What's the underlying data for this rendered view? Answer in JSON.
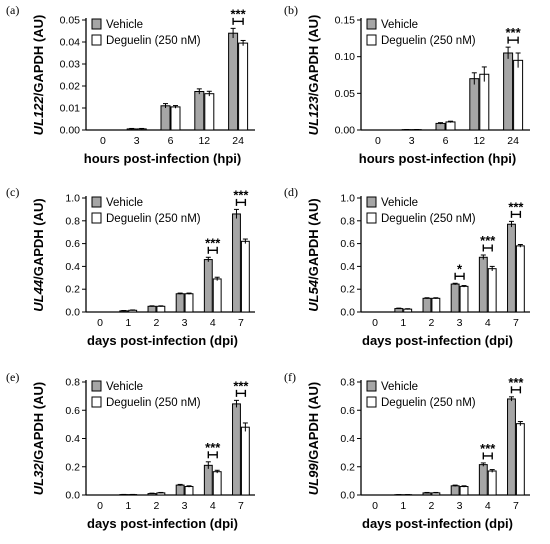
{
  "chart_data": [
    {
      "type": "bar",
      "panel_label": "(a)",
      "ylabel_gene": "UL122",
      "ylabel_rest": "/GAPDH (AU)",
      "xlabel": "hours post-infection (hpi)",
      "categories": [
        "0",
        "3",
        "6",
        "12",
        "24"
      ],
      "ylim": [
        0,
        0.05
      ],
      "yticks": [
        0,
        0.01,
        0.02,
        0.03,
        0.04,
        0.05
      ],
      "ytick_labels": [
        "0.00",
        "0.01",
        "0.02",
        "0.03",
        "0.04",
        "0.05"
      ],
      "series": [
        {
          "name": "Vehicle",
          "values": [
            0,
            0.0005,
            0.011,
            0.0175,
            0.044
          ],
          "errors": [
            0,
            0.0002,
            0.001,
            0.0012,
            0.0022
          ]
        },
        {
          "name": "Deguelin (250 nM)",
          "values": [
            0,
            0.0005,
            0.0105,
            0.0165,
            0.0395
          ],
          "errors": [
            0,
            0.0002,
            0.0006,
            0.0011,
            0.0012
          ]
        }
      ],
      "significance": [
        {
          "category": "24",
          "label": "***"
        }
      ]
    },
    {
      "type": "bar",
      "panel_label": "(b)",
      "ylabel_gene": "UL123",
      "ylabel_rest": "/GAPDH (AU)",
      "xlabel": "hours post-infection (hpi)",
      "categories": [
        "0",
        "3",
        "6",
        "12",
        "24"
      ],
      "ylim": [
        0,
        0.15
      ],
      "yticks": [
        0,
        0.05,
        0.1,
        0.15
      ],
      "ytick_labels": [
        "0.00",
        "0.05",
        "0.10",
        "0.15"
      ],
      "series": [
        {
          "name": "Vehicle",
          "values": [
            0,
            0.0005,
            0.009,
            0.07,
            0.105
          ],
          "errors": [
            0,
            0.0002,
            0.001,
            0.008,
            0.008
          ]
        },
        {
          "name": "Deguelin (250 nM)",
          "values": [
            0,
            0.0005,
            0.011,
            0.076,
            0.095
          ],
          "errors": [
            0,
            0.0002,
            0.001,
            0.01,
            0.01
          ]
        }
      ],
      "significance": [
        {
          "category": "24",
          "label": "***"
        }
      ]
    },
    {
      "type": "bar",
      "panel_label": "(c)",
      "ylabel_gene": "UL44",
      "ylabel_rest": "/GAPDH (AU)",
      "xlabel": "days post-infection (dpi)",
      "categories": [
        "0",
        "1",
        "2",
        "3",
        "4",
        "7"
      ],
      "ylim": [
        0,
        1.0
      ],
      "yticks": [
        0,
        0.2,
        0.4,
        0.6,
        0.8,
        1.0
      ],
      "ytick_labels": [
        "0.0",
        "0.2",
        "0.4",
        "0.6",
        "0.8",
        "1.0"
      ],
      "series": [
        {
          "name": "Vehicle",
          "values": [
            0,
            0.01,
            0.05,
            0.16,
            0.46,
            0.86
          ],
          "errors": [
            0,
            0.003,
            0.004,
            0.006,
            0.02,
            0.04
          ]
        },
        {
          "name": "Deguelin (250 nM)",
          "values": [
            0,
            0.015,
            0.05,
            0.16,
            0.29,
            0.62
          ],
          "errors": [
            0,
            0.003,
            0.004,
            0.006,
            0.015,
            0.02
          ]
        }
      ],
      "significance": [
        {
          "category": "4",
          "label": "***"
        },
        {
          "category": "7",
          "label": "***"
        }
      ]
    },
    {
      "type": "bar",
      "panel_label": "(d)",
      "ylabel_gene": "UL54",
      "ylabel_rest": "/GAPDH (AU)",
      "xlabel": "days post-infection (dpi)",
      "categories": [
        "0",
        "1",
        "2",
        "3",
        "4",
        "7"
      ],
      "ylim": [
        0,
        1.0
      ],
      "yticks": [
        0,
        0.2,
        0.4,
        0.6,
        0.8,
        1.0
      ],
      "ytick_labels": [
        "0.0",
        "0.2",
        "0.4",
        "0.6",
        "0.8",
        "1.0"
      ],
      "series": [
        {
          "name": "Vehicle",
          "values": [
            0,
            0.03,
            0.12,
            0.245,
            0.48,
            0.77
          ],
          "errors": [
            0,
            0.004,
            0.005,
            0.007,
            0.02,
            0.025
          ]
        },
        {
          "name": "Deguelin (250 nM)",
          "values": [
            0,
            0.025,
            0.12,
            0.225,
            0.38,
            0.58
          ],
          "errors": [
            0,
            0.004,
            0.005,
            0.007,
            0.02,
            0.012
          ]
        }
      ],
      "significance": [
        {
          "category": "3",
          "label": "*"
        },
        {
          "category": "4",
          "label": "***"
        },
        {
          "category": "7",
          "label": "***"
        }
      ]
    },
    {
      "type": "bar",
      "panel_label": "(e)",
      "ylabel_gene": "UL32",
      "ylabel_rest": "/GAPDH (AU)",
      "xlabel": "days post-infection (dpi)",
      "categories": [
        "0",
        "1",
        "2",
        "3",
        "4",
        "7"
      ],
      "ylim": [
        0,
        0.8
      ],
      "yticks": [
        0,
        0.2,
        0.4,
        0.6,
        0.8
      ],
      "ytick_labels": [
        "0.0",
        "0.2",
        "0.4",
        "0.6",
        "0.8"
      ],
      "series": [
        {
          "name": "Vehicle",
          "values": [
            0,
            0.003,
            0.01,
            0.07,
            0.21,
            0.645
          ],
          "errors": [
            0,
            0.001,
            0.003,
            0.005,
            0.025,
            0.025
          ]
        },
        {
          "name": "Deguelin (250 nM)",
          "values": [
            0,
            0.003,
            0.015,
            0.06,
            0.165,
            0.48
          ],
          "errors": [
            0,
            0.001,
            0.003,
            0.005,
            0.01,
            0.03
          ]
        }
      ],
      "significance": [
        {
          "category": "4",
          "label": "***"
        },
        {
          "category": "7",
          "label": "***"
        }
      ]
    },
    {
      "type": "bar",
      "panel_label": "(f)",
      "ylabel_gene": "UL99",
      "ylabel_rest": "/GAPDH (AU)",
      "xlabel": "days post-infection (dpi)",
      "categories": [
        "0",
        "1",
        "2",
        "3",
        "4",
        "7"
      ],
      "ylim": [
        0,
        0.8
      ],
      "yticks": [
        0,
        0.2,
        0.4,
        0.6,
        0.8
      ],
      "ytick_labels": [
        "0.0",
        "0.2",
        "0.4",
        "0.6",
        "0.8"
      ],
      "series": [
        {
          "name": "Vehicle",
          "values": [
            0,
            0.002,
            0.015,
            0.065,
            0.215,
            0.68
          ],
          "errors": [
            0,
            0.001,
            0.003,
            0.005,
            0.012,
            0.015
          ]
        },
        {
          "name": "Deguelin (250 nM)",
          "values": [
            0,
            0.002,
            0.015,
            0.06,
            0.17,
            0.505
          ],
          "errors": [
            0,
            0.001,
            0.003,
            0.005,
            0.01,
            0.015
          ]
        }
      ],
      "significance": [
        {
          "category": "4",
          "label": "***"
        },
        {
          "category": "7",
          "label": "***"
        }
      ]
    }
  ],
  "colors": {
    "vehicle": "#a6a6a6",
    "deguelin": "#ffffff",
    "ink": "#000000"
  }
}
